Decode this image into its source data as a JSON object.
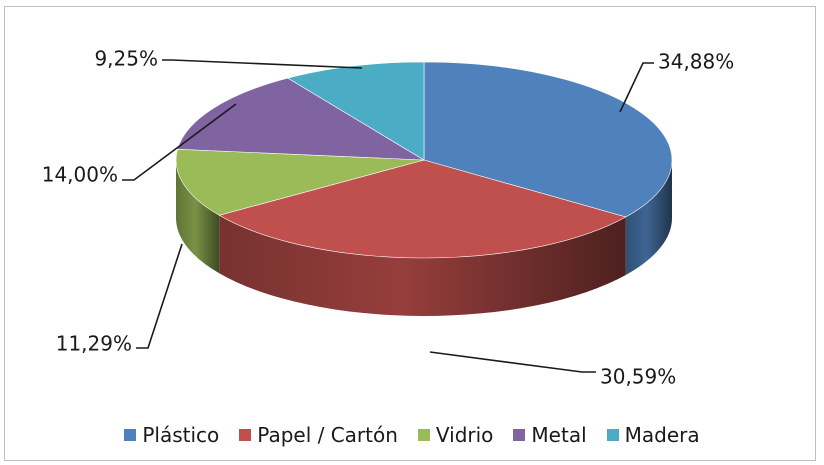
{
  "chart_data": {
    "type": "pie",
    "title": "",
    "categories": [
      "Plástico",
      "Papel / Cartón",
      "Vidrio",
      "Metal",
      "Madera"
    ],
    "values": [
      34.88,
      30.59,
      11.29,
      14.0,
      9.25
    ],
    "value_labels": [
      "34,88%",
      "30,59%",
      "11,29%",
      "14,00%",
      "9,25%"
    ],
    "colors": [
      "#4f81bd",
      "#c0504d",
      "#9bbb59",
      "#8064a2",
      "#4bacc6"
    ],
    "style": "3d-exploded-none",
    "legend_position": "bottom"
  }
}
